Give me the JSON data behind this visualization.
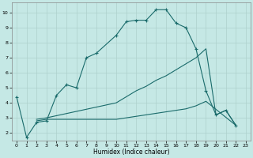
{
  "xlabel": "Humidex (Indice chaleur)",
  "background_color": "#c5e8e5",
  "grid_color": "#aed0cc",
  "line_color": "#1a6b6b",
  "xlim": [
    -0.5,
    23.5
  ],
  "ylim": [
    1.5,
    10.7
  ],
  "xticks": [
    0,
    1,
    2,
    3,
    4,
    5,
    6,
    7,
    8,
    9,
    10,
    11,
    12,
    13,
    14,
    15,
    16,
    17,
    18,
    19,
    20,
    21,
    22,
    23
  ],
  "yticks": [
    2,
    3,
    4,
    5,
    6,
    7,
    8,
    9,
    10
  ],
  "main_series": {
    "x": [
      0,
      1,
      2,
      3,
      4,
      5,
      6,
      7,
      8,
      10,
      11,
      12,
      13,
      14,
      15,
      16,
      17,
      18,
      19,
      20,
      21,
      22
    ],
    "y": [
      4.4,
      1.7,
      2.7,
      2.8,
      4.5,
      5.2,
      5.0,
      7.0,
      7.3,
      8.5,
      9.4,
      9.5,
      9.5,
      10.2,
      10.2,
      9.3,
      9.0,
      7.6,
      4.8,
      3.2,
      3.5,
      2.5
    ]
  },
  "line_diagonal": {
    "x": [
      2,
      3,
      10,
      11,
      12,
      13,
      14,
      15,
      16,
      17,
      18,
      19,
      20,
      21,
      22
    ],
    "y": [
      2.9,
      3.0,
      4.0,
      4.4,
      4.8,
      5.1,
      5.5,
      5.8,
      6.2,
      6.6,
      7.0,
      7.6,
      3.2,
      3.5,
      2.5
    ]
  },
  "line_flat": {
    "x": [
      2,
      3,
      10,
      11,
      12,
      13,
      14,
      15,
      16,
      17,
      18,
      19,
      22
    ],
    "y": [
      2.8,
      2.9,
      2.9,
      3.0,
      3.1,
      3.2,
      3.3,
      3.4,
      3.5,
      3.6,
      3.8,
      4.1,
      2.5
    ]
  }
}
